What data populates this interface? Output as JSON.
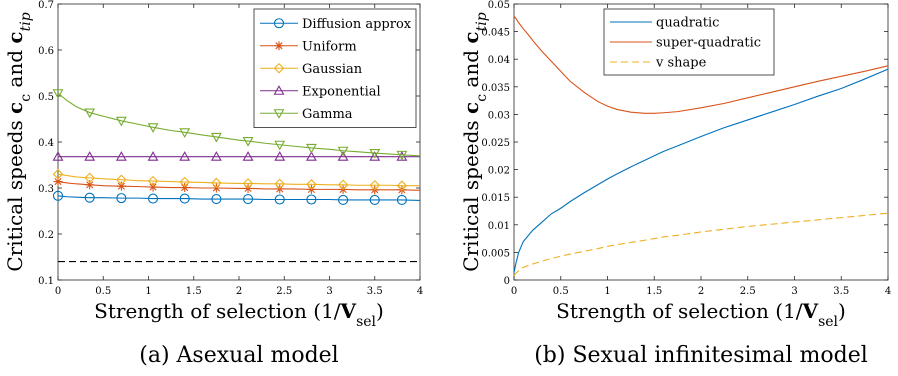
{
  "chart_data": [
    {
      "type": "line",
      "caption": "(a) Asexual model",
      "xlabel": "Strength of selection (1/V_sel)",
      "ylabel": "Critical speeds c_c and c_tip",
      "xlim": [
        0,
        4
      ],
      "ylim": [
        0.1,
        0.7
      ],
      "x_ticks": [
        "0",
        "0.5",
        "1",
        "1.5",
        "2",
        "2.5",
        "3",
        "3.5",
        "4"
      ],
      "y_ticks": [
        "0.1",
        "0.2",
        "0.3",
        "0.4",
        "0.5",
        "0.6",
        "0.7"
      ],
      "legend_position": "top-right",
      "reference_line": {
        "y": 0.14,
        "style": "dashed",
        "color": "#000000"
      },
      "x": [
        0,
        0.1,
        0.2,
        0.35,
        0.5,
        0.7,
        0.9,
        1.05,
        1.25,
        1.4,
        1.6,
        1.75,
        2.0,
        2.1,
        2.3,
        2.45,
        2.6,
        2.8,
        3.0,
        3.15,
        3.3,
        3.5,
        3.65,
        3.8,
        4.0
      ],
      "marker_x": [
        0,
        0.35,
        0.7,
        1.05,
        1.4,
        1.75,
        2.1,
        2.45,
        2.8,
        3.15,
        3.5,
        3.8
      ],
      "series": [
        {
          "name": "Diffusion approx",
          "color": "#0072bd",
          "marker": "circle",
          "values": [
            0.283,
            0.281,
            0.28,
            0.279,
            0.279,
            0.278,
            0.278,
            0.277,
            0.277,
            0.277,
            0.276,
            0.276,
            0.276,
            0.276,
            0.275,
            0.275,
            0.275,
            0.275,
            0.275,
            0.274,
            0.274,
            0.274,
            0.274,
            0.274,
            0.273
          ]
        },
        {
          "name": "Uniform",
          "color": "#d95319",
          "marker": "star",
          "values": [
            0.314,
            0.311,
            0.309,
            0.307,
            0.305,
            0.304,
            0.303,
            0.302,
            0.301,
            0.301,
            0.3,
            0.3,
            0.299,
            0.299,
            0.298,
            0.298,
            0.298,
            0.297,
            0.297,
            0.297,
            0.296,
            0.296,
            0.296,
            0.296,
            0.295
          ]
        },
        {
          "name": "Gaussian",
          "color": "#edb120",
          "marker": "diamond",
          "values": [
            0.33,
            0.327,
            0.324,
            0.322,
            0.32,
            0.318,
            0.316,
            0.315,
            0.314,
            0.313,
            0.312,
            0.311,
            0.31,
            0.31,
            0.309,
            0.309,
            0.308,
            0.308,
            0.307,
            0.307,
            0.306,
            0.306,
            0.306,
            0.305,
            0.305
          ]
        },
        {
          "name": "Exponential",
          "color": "#7e2f8e",
          "marker": "triangle-up",
          "values": [
            0.368,
            0.368,
            0.368,
            0.368,
            0.368,
            0.368,
            0.368,
            0.368,
            0.368,
            0.368,
            0.368,
            0.368,
            0.368,
            0.368,
            0.368,
            0.368,
            0.368,
            0.368,
            0.368,
            0.368,
            0.368,
            0.368,
            0.368,
            0.368,
            0.368
          ]
        },
        {
          "name": "Gamma",
          "color": "#77ac30",
          "marker": "triangle-down",
          "values": [
            0.506,
            0.49,
            0.477,
            0.464,
            0.456,
            0.446,
            0.438,
            0.432,
            0.425,
            0.421,
            0.415,
            0.411,
            0.404,
            0.402,
            0.397,
            0.394,
            0.391,
            0.387,
            0.384,
            0.381,
            0.379,
            0.376,
            0.374,
            0.372,
            0.37
          ]
        }
      ]
    },
    {
      "type": "line",
      "caption": "(b) Sexual infinitesimal model",
      "xlabel": "Strength of selection (1/V_sel)",
      "ylabel": "Critical speeds c_c and c_tip",
      "xlim": [
        0,
        4
      ],
      "ylim": [
        0,
        0.05
      ],
      "x_ticks": [
        "0",
        "0.5",
        "1",
        "1.5",
        "2",
        "2.5",
        "3",
        "3.5",
        "4"
      ],
      "y_ticks": [
        "0",
        "0.005",
        "0.01",
        "0.015",
        "0.02",
        "0.025",
        "0.03",
        "0.035",
        "0.04",
        "0.045",
        "0.05"
      ],
      "legend_position": "top-left",
      "x": [
        0,
        0.02,
        0.05,
        0.1,
        0.15,
        0.2,
        0.3,
        0.4,
        0.5,
        0.6,
        0.75,
        0.9,
        1.0,
        1.1,
        1.25,
        1.4,
        1.5,
        1.6,
        1.75,
        2.0,
        2.25,
        2.5,
        2.75,
        3.0,
        3.25,
        3.5,
        3.75,
        4.0
      ],
      "series": [
        {
          "name": "quadratic",
          "color": "#0072bd",
          "style": "solid",
          "values": [
            0.0013,
            0.003,
            0.005,
            0.007,
            0.008,
            0.009,
            0.0105,
            0.012,
            0.013,
            0.0142,
            0.0158,
            0.0173,
            0.0183,
            0.0192,
            0.0205,
            0.0217,
            0.0225,
            0.0233,
            0.0243,
            0.026,
            0.0276,
            0.029,
            0.0304,
            0.0318,
            0.0333,
            0.0347,
            0.0364,
            0.0382
          ]
        },
        {
          "name": "super-quadratic",
          "color": "#d95319",
          "style": "solid",
          "values": [
            0.0478,
            0.0474,
            0.0466,
            0.0455,
            0.0445,
            0.0434,
            0.0414,
            0.0396,
            0.0378,
            0.036,
            0.034,
            0.0323,
            0.0315,
            0.0309,
            0.0304,
            0.0302,
            0.0302,
            0.0303,
            0.0305,
            0.0312,
            0.032,
            0.033,
            0.034,
            0.035,
            0.036,
            0.0369,
            0.0378,
            0.0388
          ]
        },
        {
          "name": "v shape",
          "color": "#edb120",
          "style": "dashed",
          "values": [
            0.0008,
            0.0012,
            0.0017,
            0.0023,
            0.0026,
            0.0029,
            0.0034,
            0.0039,
            0.0043,
            0.0047,
            0.0052,
            0.0057,
            0.0061,
            0.0064,
            0.0068,
            0.0072,
            0.0075,
            0.0078,
            0.0081,
            0.0087,
            0.0092,
            0.0097,
            0.0101,
            0.0105,
            0.0109,
            0.0113,
            0.0117,
            0.0121
          ]
        }
      ]
    }
  ]
}
